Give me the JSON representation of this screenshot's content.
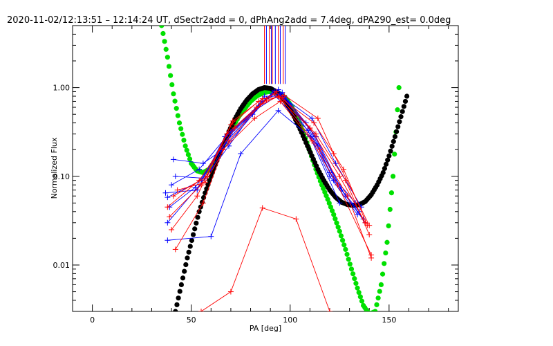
{
  "chart_data": {
    "type": "line",
    "title": "2020-11-02/12:13:51 – 12:14:24 UT, dSectr2add = 0, dPhAng2add = 7.4deg, dPA290_est=  0.0deg",
    "xlabel": "PA [deg]",
    "ylabel": "Normalized Flux",
    "xlim": [
      -10,
      185
    ],
    "ylim": [
      0.003,
      5.0
    ],
    "yscale": "log",
    "x_ticks": [
      0,
      50,
      100,
      150
    ],
    "x_tick_labels": [
      "0",
      "50",
      "100",
      "150"
    ],
    "y_ticks": [
      0.01,
      0.1,
      1.0
    ],
    "y_tick_labels": [
      "0.01",
      "0.10",
      "1.00"
    ],
    "colors": {
      "red": "#ff0000",
      "blue": "#0000ff",
      "green": "#00e000",
      "black": "#000000"
    },
    "vertical_markers": {
      "red": [
        87.0,
        89.5,
        91.0,
        94.0,
        96.5
      ],
      "blue": [
        88.0,
        90.5,
        92.5,
        95.0,
        97.5
      ],
      "y_from": 1.1,
      "y_to": 5.0
    },
    "series": [
      {
        "name": "green-model",
        "color": "#00e000",
        "style": "dots",
        "x": [
          35,
          38,
          41,
          44,
          47,
          50,
          53,
          56,
          59,
          62,
          65,
          68,
          71,
          74,
          77,
          80,
          83,
          86,
          89,
          92,
          95,
          98,
          101,
          104,
          107,
          110,
          113,
          116,
          119,
          122,
          125,
          128,
          131,
          134,
          137,
          140,
          143,
          146,
          149,
          152,
          155
        ],
        "y": [
          5.0,
          2.2,
          0.85,
          0.4,
          0.22,
          0.14,
          0.115,
          0.11,
          0.12,
          0.15,
          0.2,
          0.27,
          0.36,
          0.47,
          0.58,
          0.7,
          0.8,
          0.87,
          0.9,
          0.9,
          0.85,
          0.75,
          0.6,
          0.44,
          0.3,
          0.19,
          0.12,
          0.08,
          0.055,
          0.037,
          0.024,
          0.015,
          0.009,
          0.0055,
          0.0035,
          0.0028,
          0.003,
          0.006,
          0.018,
          0.1,
          1.0
        ]
      },
      {
        "name": "black-model",
        "color": "#000000",
        "style": "dots",
        "x": [
          42,
          45,
          48,
          51,
          54,
          57,
          60,
          63,
          66,
          69,
          72,
          75,
          78,
          81,
          84,
          87,
          90,
          93,
          96,
          99,
          102,
          105,
          108,
          111,
          114,
          117,
          120,
          123,
          126,
          129,
          132,
          135,
          138,
          141,
          144,
          147,
          150,
          153,
          156,
          159
        ],
        "y": [
          0.003,
          0.006,
          0.012,
          0.022,
          0.04,
          0.065,
          0.1,
          0.15,
          0.22,
          0.32,
          0.44,
          0.58,
          0.72,
          0.85,
          0.95,
          1.0,
          0.98,
          0.9,
          0.78,
          0.62,
          0.47,
          0.34,
          0.24,
          0.17,
          0.12,
          0.09,
          0.07,
          0.058,
          0.051,
          0.048,
          0.047,
          0.048,
          0.052,
          0.062,
          0.08,
          0.11,
          0.17,
          0.28,
          0.47,
          0.8
        ]
      },
      {
        "name": "blue-1",
        "color": "#0000ff",
        "style": "line+plus",
        "x": [
          38,
          55,
          70,
          85,
          93,
          110,
          122,
          135
        ],
        "y": [
          0.058,
          0.09,
          0.3,
          0.65,
          0.9,
          0.35,
          0.09,
          0.04
        ]
      },
      {
        "name": "blue-2",
        "color": "#0000ff",
        "style": "line+plus",
        "x": [
          39,
          52,
          68,
          82,
          95,
          112,
          124,
          137
        ],
        "y": [
          0.045,
          0.075,
          0.25,
          0.55,
          0.85,
          0.3,
          0.08,
          0.033
        ]
      },
      {
        "name": "blue-3",
        "color": "#0000ff",
        "style": "line+plus",
        "x": [
          38,
          58,
          72,
          86,
          94,
          108,
          120,
          133
        ],
        "y": [
          0.03,
          0.1,
          0.35,
          0.7,
          0.95,
          0.4,
          0.11,
          0.05
        ]
      },
      {
        "name": "blue-4",
        "color": "#0000ff",
        "style": "line+plus",
        "x": [
          41,
          56,
          66,
          88,
          96,
          113,
          126,
          138
        ],
        "y": [
          0.155,
          0.14,
          0.2,
          0.75,
          0.88,
          0.28,
          0.07,
          0.03
        ]
      },
      {
        "name": "blue-5",
        "color": "#0000ff",
        "style": "line+plus",
        "x": [
          38,
          60,
          75,
          94,
          110,
          125
        ],
        "y": [
          0.019,
          0.021,
          0.18,
          0.55,
          0.28,
          0.05
        ]
      },
      {
        "name": "blue-6",
        "color": "#0000ff",
        "style": "line+plus",
        "x": [
          40,
          54,
          70,
          84,
          92,
          111,
          123,
          136
        ],
        "y": [
          0.08,
          0.12,
          0.32,
          0.62,
          0.92,
          0.45,
          0.14,
          0.045
        ]
      },
      {
        "name": "blue-7",
        "color": "#0000ff",
        "style": "line+plus",
        "x": [
          42,
          57,
          69,
          87,
          97,
          114,
          128
        ],
        "y": [
          0.1,
          0.095,
          0.22,
          0.8,
          0.8,
          0.22,
          0.06
        ]
      },
      {
        "name": "blue-8",
        "color": "#0000ff",
        "style": "line+plus",
        "x": [
          37,
          53,
          67,
          81,
          91,
          109,
          120,
          134
        ],
        "y": [
          0.065,
          0.07,
          0.28,
          0.5,
          0.87,
          0.33,
          0.1,
          0.037
        ]
      },
      {
        "name": "red-1",
        "color": "#ff0000",
        "style": "line+plus",
        "x": [
          39,
          55,
          70,
          84,
          92,
          110,
          125,
          138
        ],
        "y": [
          0.035,
          0.08,
          0.38,
          0.7,
          0.85,
          0.35,
          0.1,
          0.03
        ]
      },
      {
        "name": "red-2",
        "color": "#ff0000",
        "style": "line+plus",
        "x": [
          40,
          53,
          68,
          83,
          94,
          112,
          127,
          139
        ],
        "y": [
          0.025,
          0.06,
          0.3,
          0.6,
          0.8,
          0.4,
          0.12,
          0.028
        ]
      },
      {
        "name": "red-3",
        "color": "#ff0000",
        "style": "line+plus",
        "x": [
          41,
          58,
          71,
          86,
          96,
          113,
          128,
          140
        ],
        "y": [
          0.06,
          0.1,
          0.42,
          0.75,
          0.78,
          0.3,
          0.09,
          0.022
        ]
      },
      {
        "name": "red-4",
        "color": "#ff0000",
        "style": "line+plus",
        "x": [
          42,
          56,
          66,
          82,
          95,
          111,
          124,
          141
        ],
        "y": [
          0.015,
          0.05,
          0.2,
          0.45,
          0.7,
          0.25,
          0.08,
          0.013
        ]
      },
      {
        "name": "red-5",
        "color": "#ff0000",
        "style": "line+plus",
        "x": [
          38,
          54,
          72,
          88,
          97,
          114,
          122,
          140
        ],
        "y": [
          0.045,
          0.09,
          0.35,
          0.72,
          0.82,
          0.45,
          0.18,
          0.028
        ]
      },
      {
        "name": "red-6",
        "color": "#ff0000",
        "style": "line+plus",
        "x": [
          43,
          57,
          69,
          85,
          93,
          115,
          129,
          141
        ],
        "y": [
          0.07,
          0.085,
          0.25,
          0.65,
          0.9,
          0.2,
          0.06,
          0.012
        ]
      },
      {
        "name": "red-outlier",
        "color": "#ff0000",
        "style": "line+plus",
        "x": [
          55,
          70,
          86,
          103,
          120
        ],
        "y": [
          0.003,
          0.005,
          0.044,
          0.033,
          0.003
        ]
      }
    ]
  }
}
